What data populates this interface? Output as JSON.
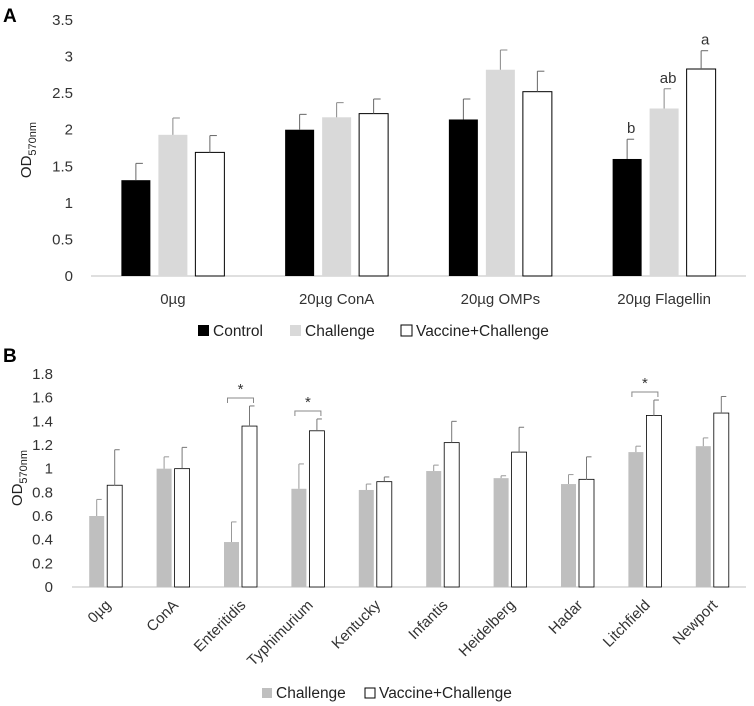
{
  "colors": {
    "control": "#000000",
    "challenge": "#d9d9d9",
    "challenge_b": "#bfbfbf",
    "vaccine": "#ffffff",
    "axis": "#bfbfbf",
    "text": "#333333"
  },
  "chart_data": [
    {
      "panel": "A",
      "type": "bar",
      "title": "",
      "xlabel": "",
      "ylabel": {
        "main": "OD",
        "sub": "570nm"
      },
      "ylim": [
        0,
        3.5
      ],
      "yticks": [
        "0",
        "0.5",
        "1",
        "1.5",
        "2",
        "2.5",
        "3",
        "3.5"
      ],
      "categories": [
        "0µg",
        "20µg ConA",
        "20µg OMPs",
        "20µg Flagellin"
      ],
      "series": [
        {
          "name": "Control",
          "values": [
            1.31,
            2.0,
            2.14,
            1.6
          ],
          "errors": [
            0.23,
            0.21,
            0.28,
            0.27
          ]
        },
        {
          "name": "Challenge",
          "values": [
            1.93,
            2.17,
            2.82,
            2.29
          ],
          "errors": [
            0.23,
            0.2,
            0.27,
            0.27
          ]
        },
        {
          "name": "Vaccine+Challenge",
          "values": [
            1.69,
            2.22,
            2.52,
            2.83
          ],
          "errors": [
            0.23,
            0.2,
            0.28,
            0.25
          ]
        }
      ],
      "annotations": [
        {
          "category": "20µg Flagellin",
          "series": "Control",
          "label": "b"
        },
        {
          "category": "20µg Flagellin",
          "series": "Challenge",
          "label": "ab"
        },
        {
          "category": "20µg Flagellin",
          "series": "Vaccine+Challenge",
          "label": "a"
        }
      ],
      "legend": [
        "Control",
        "Challenge",
        "Vaccine+Challenge"
      ],
      "legend_position": "bottom",
      "grid": false
    },
    {
      "panel": "B",
      "type": "bar",
      "title": "",
      "xlabel": "",
      "ylabel": {
        "main": "OD",
        "sub": "570nm"
      },
      "ylim": [
        0,
        1.8
      ],
      "yticks": [
        "0",
        "0.2",
        "0.4",
        "0.6",
        "0.8",
        "1",
        "1.2",
        "1.4",
        "1.6",
        "1.8"
      ],
      "categories": [
        "0µg",
        "ConA",
        "Enteritidis",
        "Typhimurium",
        "Kentucky",
        "Infantis",
        "Heidelberg",
        "Hadar",
        "Litchfield",
        "Newport"
      ],
      "series": [
        {
          "name": "Challenge",
          "values": [
            0.6,
            1.0,
            0.38,
            0.83,
            0.82,
            0.98,
            0.92,
            0.87,
            1.14,
            1.19
          ],
          "errors": [
            0.14,
            0.1,
            0.17,
            0.21,
            0.05,
            0.05,
            0.02,
            0.08,
            0.05,
            0.07
          ]
        },
        {
          "name": "Vaccine+Challenge",
          "values": [
            0.86,
            1.0,
            1.36,
            1.32,
            0.89,
            1.22,
            1.14,
            0.91,
            1.45,
            1.47
          ],
          "errors": [
            0.3,
            0.18,
            0.17,
            0.1,
            0.04,
            0.18,
            0.21,
            0.19,
            0.13,
            0.14
          ]
        }
      ],
      "significance": [
        {
          "category": "Enteritidis",
          "label": "*"
        },
        {
          "category": "Typhimurium",
          "label": "*"
        },
        {
          "category": "Litchfield",
          "label": "*"
        }
      ],
      "legend": [
        "Challenge",
        "Vaccine+Challenge"
      ],
      "legend_position": "bottom",
      "grid": false
    }
  ]
}
